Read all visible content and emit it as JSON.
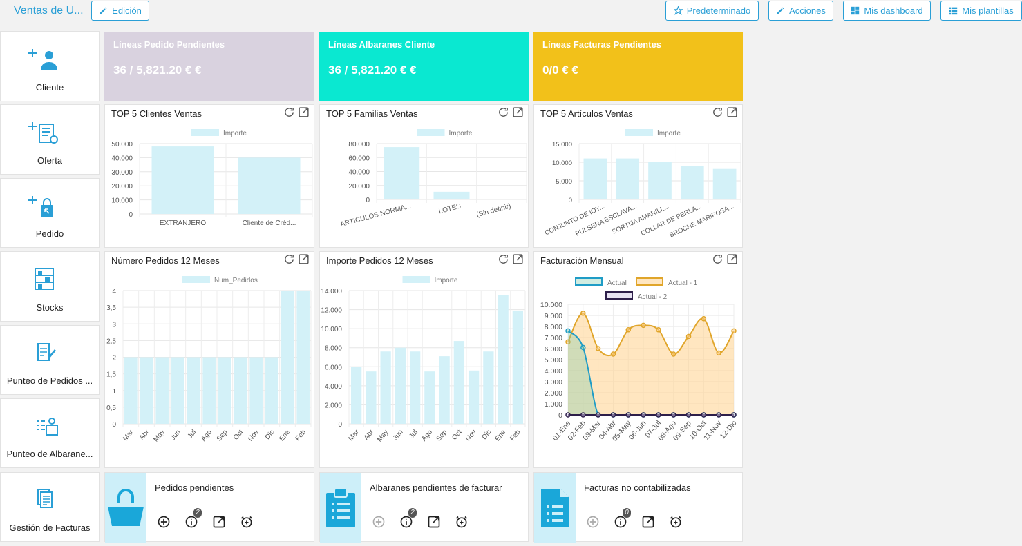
{
  "topbar": {
    "title": "Ventas de U...",
    "edit_label": "Edición",
    "default_label": "Predeterminado",
    "actions_label": "Acciones",
    "dashboard_label": "Mis dashboard",
    "templates_label": "Mis plantillas"
  },
  "tiles": [
    {
      "label": "Cliente"
    },
    {
      "label": "Oferta"
    },
    {
      "label": "Pedido"
    },
    {
      "label": "Stocks"
    },
    {
      "label": "Punteo de Pedidos ..."
    },
    {
      "label": "Punteo de Albarane..."
    },
    {
      "label": "Gestión de Facturas"
    }
  ],
  "kpis": [
    {
      "title": "Líneas Pedido Pendientes",
      "value": "36 / 5,821.20 € €",
      "color": "#d9d2df"
    },
    {
      "title": "Líneas Albaranes Cliente",
      "value": "36 / 5,821.20 € €",
      "color": "#0ae8d1"
    },
    {
      "title": "Líneas Facturas Pendientes",
      "value": "0/0 € €",
      "color": "#f2c11a"
    }
  ],
  "charts": {
    "clientes": {
      "title": "TOP 5 Clientes Ventas"
    },
    "familias": {
      "title": "TOP 5 Familias Ventas"
    },
    "articulos": {
      "title": "TOP 5 Artículos Ventas"
    },
    "num_pedidos": {
      "title": "Número Pedidos 12 Meses"
    },
    "imp_pedidos": {
      "title": "Importe Pedidos 12 Meses"
    },
    "facturacion": {
      "title": "Facturación Mensual"
    }
  },
  "bottom": [
    {
      "title": "Pedidos pendientes",
      "badge": "2"
    },
    {
      "title": "Albaranes pendientes de facturar",
      "badge": "2"
    },
    {
      "title": "Facturas no contabilizadas",
      "badge": "0"
    }
  ],
  "chart_data": [
    {
      "id": "clientes",
      "type": "bar",
      "title": "TOP 5 Clientes Ventas",
      "legend": [
        "Importe"
      ],
      "categories": [
        "EXTRANJERO",
        "Cliente de Créd..."
      ],
      "values": [
        48000,
        40000
      ],
      "ylim": [
        0,
        50000
      ],
      "yticks": [
        0,
        10000,
        20000,
        30000,
        40000,
        50000
      ],
      "ytick_labels": [
        "0",
        "10.000",
        "20.000",
        "30.000",
        "40.000",
        "50.000"
      ]
    },
    {
      "id": "familias",
      "type": "bar",
      "title": "TOP 5 Familias Ventas",
      "legend": [
        "Importe"
      ],
      "categories": [
        "ARTICULOS NORMA...",
        "LOTES",
        "(Sin definir)"
      ],
      "values": [
        75000,
        11000,
        0
      ],
      "ylim": [
        0,
        80000
      ],
      "yticks": [
        0,
        20000,
        40000,
        60000,
        80000
      ],
      "ytick_labels": [
        "0",
        "20.000",
        "40.000",
        "60.000",
        "80.000"
      ]
    },
    {
      "id": "articulos",
      "type": "bar",
      "title": "TOP 5 Artículos Ventas",
      "legend": [
        "Importe"
      ],
      "categories": [
        "CONJUNTO DE IOY...",
        "PULSERA ESCLAVA...",
        "SORTIJA AMARILL...",
        "COLLAR DE PERLA...",
        "BROCHE MARIPOSA..."
      ],
      "values": [
        11000,
        11000,
        10000,
        9000,
        8200
      ],
      "ylim": [
        0,
        15000
      ],
      "yticks": [
        0,
        5000,
        10000,
        15000
      ],
      "ytick_labels": [
        "0",
        "5.000",
        "10.000",
        "15.000"
      ]
    },
    {
      "id": "num_pedidos",
      "type": "bar",
      "title": "Número Pedidos 12 Meses",
      "legend": [
        "Num_Pedidos"
      ],
      "categories": [
        "Mar",
        "Abr",
        "May",
        "Jun",
        "Jul",
        "Ago",
        "Sep",
        "Oct",
        "Nov",
        "Dic",
        "Ene",
        "Feb"
      ],
      "values": [
        2,
        2,
        2,
        2,
        2,
        2,
        2,
        2,
        2,
        2,
        4,
        4
      ],
      "ylim": [
        0,
        4
      ],
      "yticks": [
        0,
        0.5,
        1,
        1.5,
        2,
        2.5,
        3,
        3.5,
        4
      ],
      "ytick_labels": [
        "0",
        "0,5",
        "1",
        "1,5",
        "2",
        "2,5",
        "3",
        "3,5",
        "4"
      ]
    },
    {
      "id": "imp_pedidos",
      "type": "bar",
      "title": "Importe Pedidos 12 Meses",
      "legend": [
        "Importe"
      ],
      "categories": [
        "Mar",
        "Abr",
        "May",
        "Jun",
        "Jul",
        "Ago",
        "Sep",
        "Oct",
        "Nov",
        "Dic",
        "Ene",
        "Feb"
      ],
      "values": [
        6000,
        5500,
        7600,
        8000,
        7600,
        5500,
        7100,
        8700,
        5600,
        7600,
        13500,
        11900
      ],
      "ylim": [
        0,
        14000
      ],
      "yticks": [
        0,
        2000,
        4000,
        6000,
        8000,
        10000,
        12000,
        14000
      ],
      "ytick_labels": [
        "0",
        "2.000",
        "4.000",
        "6.000",
        "8.000",
        "10.000",
        "12.000",
        "14.000"
      ]
    },
    {
      "id": "facturacion",
      "type": "area",
      "title": "Facturación Mensual",
      "categories": [
        "01-Ene",
        "02-Feb",
        "03-Mar",
        "04-Abr",
        "05-May",
        "06-Jun",
        "07-Jul",
        "08-Ago",
        "09-Sep",
        "10-Oct",
        "11-Nov",
        "12-Dic"
      ],
      "ylim": [
        0,
        10000
      ],
      "yticks": [
        0,
        1000,
        2000,
        3000,
        4000,
        5000,
        6000,
        7000,
        8000,
        9000,
        10000
      ],
      "ytick_labels": [
        "0",
        "1.000",
        "2.000",
        "3.000",
        "4.000",
        "5.000",
        "6.000",
        "7.000",
        "8.000",
        "9.000",
        "10.000"
      ],
      "series": [
        {
          "name": "Actual",
          "values": [
            7600,
            6100,
            0,
            0,
            0,
            0,
            0,
            0,
            0,
            0,
            0,
            0
          ],
          "color": "#1f9cc6",
          "fill": "rgba(120,200,170,0.35)"
        },
        {
          "name": "Actual - 1",
          "values": [
            6600,
            9200,
            6000,
            5500,
            7700,
            8100,
            7700,
            5500,
            7100,
            8700,
            5600,
            7600
          ],
          "color": "#e0a52a",
          "fill": "rgba(255,210,140,0.55)"
        },
        {
          "name": "Actual - 2",
          "values": [
            0,
            0,
            0,
            0,
            0,
            0,
            0,
            0,
            0,
            0,
            0,
            0
          ],
          "color": "#2e1f4a",
          "fill": "rgba(210,200,230,0.5)"
        }
      ]
    }
  ]
}
